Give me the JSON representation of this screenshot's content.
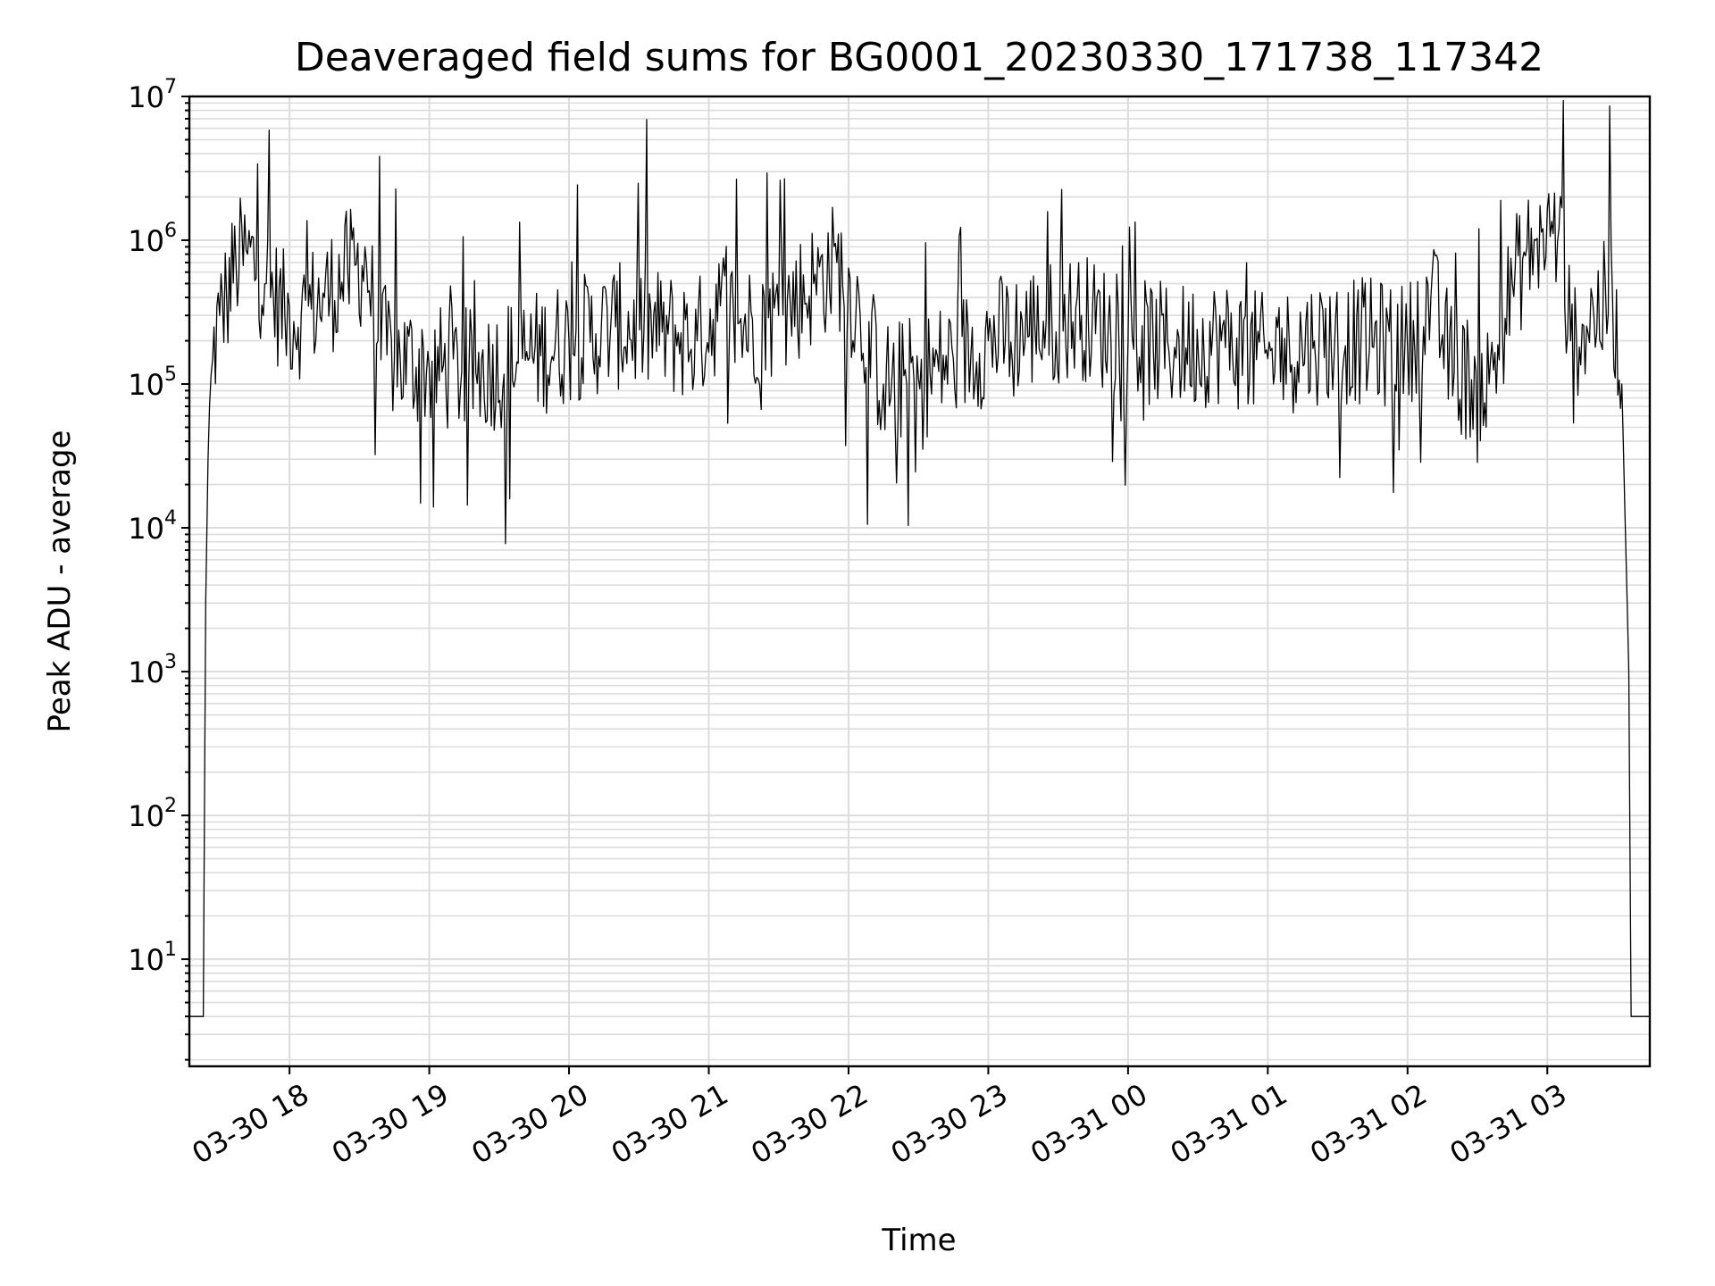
{
  "chart_data": {
    "type": "line",
    "title": "Deaveraged field sums for BG0001_20230330_171738_117342",
    "xlabel": "Time",
    "ylabel": "Peak ADU - average",
    "yscale": "log",
    "ylim": [
      1.8,
      10000000
    ],
    "xlim": [
      "2023-03-30 17:17",
      "2023-03-31 03:44"
    ],
    "grid": "on (major and minor)",
    "legend": "none",
    "line_color": "#000000",
    "x_ticks": [
      {
        "label": "03-30 18",
        "time": "2023-03-30 18:00"
      },
      {
        "label": "03-30 19",
        "time": "2023-03-30 19:00"
      },
      {
        "label": "03-30 20",
        "time": "2023-03-30 20:00"
      },
      {
        "label": "03-30 21",
        "time": "2023-03-30 21:00"
      },
      {
        "label": "03-30 22",
        "time": "2023-03-30 22:00"
      },
      {
        "label": "03-30 23",
        "time": "2023-03-30 23:00"
      },
      {
        "label": "03-31 00",
        "time": "2023-03-31 00:00"
      },
      {
        "label": "03-31 01",
        "time": "2023-03-31 01:00"
      },
      {
        "label": "03-31 02",
        "time": "2023-03-31 02:00"
      },
      {
        "label": "03-31 03",
        "time": "2023-03-31 03:00"
      }
    ],
    "y_ticks": [
      {
        "base": "10",
        "exp": "1",
        "value": 10
      },
      {
        "base": "10",
        "exp": "2",
        "value": 100
      },
      {
        "base": "10",
        "exp": "3",
        "value": 1000
      },
      {
        "base": "10",
        "exp": "4",
        "value": 10000
      },
      {
        "base": "10",
        "exp": "5",
        "value": 100000
      },
      {
        "base": "10",
        "exp": "6",
        "value": 1000000
      },
      {
        "base": "10",
        "exp": "7",
        "value": 10000000
      }
    ],
    "series": [
      {
        "values": [
          [
            "2023-03-30 17:17",
            4
          ],
          [
            "2023-03-30 17:23",
            4
          ],
          [
            "2023-03-30 17:24",
            3000
          ],
          [
            "2023-03-30 17:25",
            30000
          ],
          [
            "2023-03-30 17:27",
            150000
          ],
          [
            "2023-03-30 17:30",
            300000
          ],
          [
            "2023-03-30 17:33",
            400000
          ],
          [
            "2023-03-30 17:37",
            700000
          ],
          [
            "2023-03-30 17:42",
            800000
          ],
          [
            "2023-03-30 17:50",
            500000
          ],
          [
            "2023-03-30 17:58",
            300000
          ],
          [
            "2023-03-30 18:05",
            300000
          ],
          [
            "2023-03-30 18:15",
            400000
          ],
          [
            "2023-03-30 18:25",
            600000
          ],
          [
            "2023-03-30 18:33",
            700000
          ],
          [
            "2023-03-30 18:38",
            200000
          ],
          [
            "2023-03-30 18:45",
            150000
          ],
          [
            "2023-03-30 19:00",
            130000
          ],
          [
            "2023-03-30 19:20",
            120000
          ],
          [
            "2023-03-30 19:40",
            150000
          ],
          [
            "2023-03-30 20:00",
            200000
          ],
          [
            "2023-03-30 20:20",
            250000
          ],
          [
            "2023-03-30 20:40",
            230000
          ],
          [
            "2023-03-30 20:55",
            200000
          ],
          [
            "2023-03-30 21:05",
            350000
          ],
          [
            "2023-03-30 21:15",
            250000
          ],
          [
            "2023-03-30 21:30",
            300000
          ],
          [
            "2023-03-30 21:45",
            500000
          ],
          [
            "2023-03-30 21:55",
            700000
          ],
          [
            "2023-03-30 22:05",
            300000
          ],
          [
            "2023-03-30 22:15",
            100000
          ],
          [
            "2023-03-30 22:30",
            110000
          ],
          [
            "2023-03-30 22:45",
            150000
          ],
          [
            "2023-03-30 23:00",
            200000
          ],
          [
            "2023-03-30 23:20",
            250000
          ],
          [
            "2023-03-30 23:40",
            300000
          ],
          [
            "2023-03-31 00:00",
            200000
          ],
          [
            "2023-03-31 00:20",
            180000
          ],
          [
            "2023-03-31 00:40",
            200000
          ],
          [
            "2023-03-31 01:00",
            150000
          ],
          [
            "2023-03-31 01:20",
            200000
          ],
          [
            "2023-03-31 01:40",
            200000
          ],
          [
            "2023-03-31 02:00",
            180000
          ],
          [
            "2023-03-31 02:10",
            400000
          ],
          [
            "2023-03-31 02:20",
            120000
          ],
          [
            "2023-03-31 02:35",
            100000
          ],
          [
            "2023-03-31 02:45",
            500000
          ],
          [
            "2023-03-31 02:55",
            1000000
          ],
          [
            "2023-03-31 03:05",
            1200000
          ],
          [
            "2023-03-31 03:10",
            200000
          ],
          [
            "2023-03-31 03:20",
            300000
          ],
          [
            "2023-03-31 03:28",
            400000
          ],
          [
            "2023-03-31 03:32",
            100000
          ],
          [
            "2023-03-31 03:35",
            1000
          ],
          [
            "2023-03-31 03:36",
            4
          ],
          [
            "2023-03-31 03:44",
            4
          ]
        ]
      }
    ]
  }
}
